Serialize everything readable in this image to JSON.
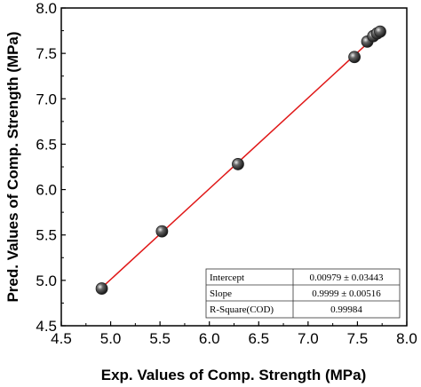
{
  "chart_data": {
    "type": "scatter",
    "xlabel": "Exp. Values of Comp. Strength (MPa)",
    "ylabel": "Pred. Values of Comp. Strength (MPa)",
    "xlim": [
      4.5,
      8.0
    ],
    "ylim": [
      4.5,
      8.0
    ],
    "xticks": [
      "4.5",
      "5.0",
      "5.5",
      "6.0",
      "6.5",
      "7.0",
      "7.5",
      "8.0"
    ],
    "yticks": [
      "4.5",
      "5.0",
      "5.5",
      "6.0",
      "6.5",
      "7.0",
      "7.5",
      "8.0"
    ],
    "grid": false,
    "points": [
      {
        "x": 4.91,
        "y": 4.91
      },
      {
        "x": 5.52,
        "y": 5.54
      },
      {
        "x": 6.29,
        "y": 6.28
      },
      {
        "x": 7.47,
        "y": 7.46
      },
      {
        "x": 7.6,
        "y": 7.63
      },
      {
        "x": 7.66,
        "y": 7.69
      },
      {
        "x": 7.7,
        "y": 7.72
      },
      {
        "x": 7.73,
        "y": 7.74
      }
    ],
    "fit_line": {
      "x_start": 4.91,
      "x_end": 7.76,
      "intercept": 0.00979,
      "slope": 0.9999,
      "color": "#e01818"
    },
    "marker_color": "#222222",
    "stats_table": {
      "rows": [
        {
          "label": "Intercept",
          "value": "0.00979 ± 0.03443"
        },
        {
          "label": "Slope",
          "value": "0.9999 ± 0.00516"
        },
        {
          "label": "R-Square(COD)",
          "value": "0.99984"
        }
      ]
    }
  }
}
